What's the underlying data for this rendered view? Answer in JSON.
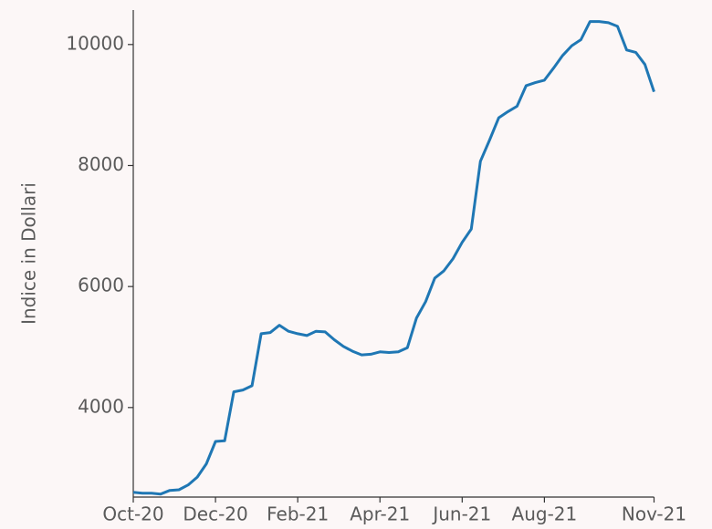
{
  "chart_data": {
    "type": "line",
    "y_label": "Indice in Dollari",
    "categories": [
      "Oct-20",
      null,
      null,
      null,
      null,
      null,
      null,
      null,
      null,
      "Dec-20",
      null,
      null,
      null,
      null,
      null,
      null,
      null,
      null,
      "Feb-21",
      null,
      null,
      null,
      null,
      null,
      null,
      null,
      null,
      "Apr-21",
      null,
      null,
      null,
      null,
      null,
      null,
      null,
      null,
      "Jun-21",
      null,
      null,
      null,
      null,
      null,
      null,
      null,
      null,
      "Aug-21",
      null,
      null,
      null,
      null,
      null,
      null,
      null,
      null,
      null,
      null,
      null,
      "Nov-21"
    ],
    "series": [
      {
        "name": "Indice",
        "color": "#1f77b4",
        "values": [
          2600,
          2585,
          2585,
          2570,
          2630,
          2640,
          2720,
          2850,
          3070,
          3440,
          3450,
          4260,
          4290,
          4360,
          5220,
          5240,
          5360,
          5260,
          5220,
          5190,
          5260,
          5250,
          5120,
          5010,
          4930,
          4870,
          4880,
          4920,
          4910,
          4920,
          4990,
          5480,
          5750,
          6140,
          6260,
          6460,
          6730,
          6950,
          8070,
          8420,
          8790,
          8890,
          8980,
          9320,
          9370,
          9410,
          9610,
          9820,
          9980,
          10080,
          10380,
          10380,
          10360,
          10300,
          9910,
          9870,
          9670,
          9220
        ]
      }
    ],
    "ylim": [
      2520,
      10570
    ],
    "yticks": [
      4000,
      6000,
      8000,
      10000
    ]
  }
}
